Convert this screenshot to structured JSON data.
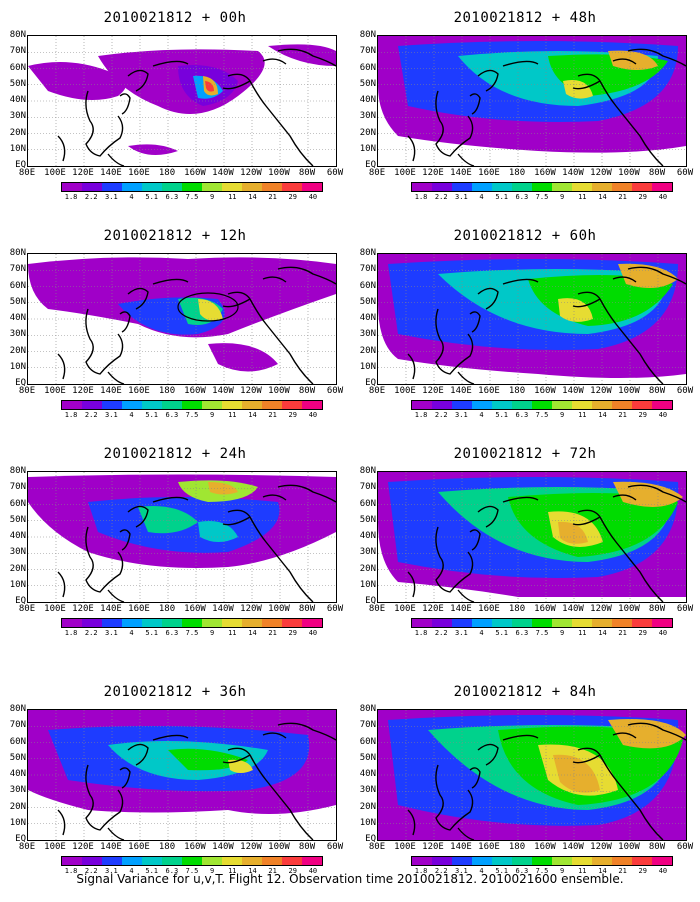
{
  "panels": [
    {
      "title": "2010021812 + 00h",
      "id": "00"
    },
    {
      "title": "2010021812 + 48h",
      "id": "48"
    },
    {
      "title": "2010021812 + 12h",
      "id": "12"
    },
    {
      "title": "2010021812 + 60h",
      "id": "60"
    },
    {
      "title": "2010021812 + 24h",
      "id": "24"
    },
    {
      "title": "2010021812 + 72h",
      "id": "72"
    },
    {
      "title": "2010021812 + 36h",
      "id": "36"
    },
    {
      "title": "2010021812 + 84h",
      "id": "84"
    }
  ],
  "lat_ticks": [
    "80N",
    "70N",
    "60N",
    "50N",
    "40N",
    "30N",
    "20N",
    "10N",
    "EQ"
  ],
  "lon_ticks": [
    "80E",
    "100E",
    "120E",
    "140E",
    "160E",
    "180",
    "160W",
    "140W",
    "120W",
    "100W",
    "80W",
    "60W"
  ],
  "colorbar": {
    "labels": [
      "1.8",
      "2.2",
      "3.1",
      "4",
      "5.1",
      "6.3",
      "7.5",
      "9",
      "11",
      "14",
      "21",
      "29",
      "40"
    ],
    "colors": [
      "#a000c8",
      "#7800dc",
      "#1e3cff",
      "#00a0ff",
      "#00c8c8",
      "#00d28c",
      "#00dc00",
      "#a0e632",
      "#e6dc32",
      "#e6af2d",
      "#f08228",
      "#fa3c3c",
      "#f00082"
    ]
  },
  "caption": "Signal Variance for u,v,T. Flight 12. Observation time 2010021812. 2010021600 ensemble."
}
